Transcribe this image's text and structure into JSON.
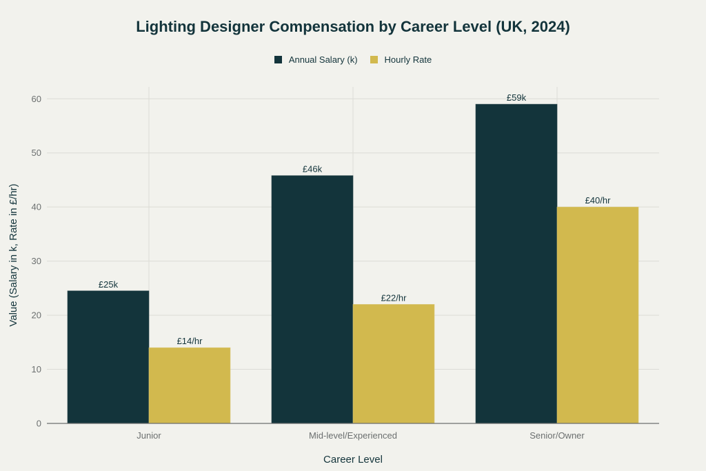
{
  "chart_data": {
    "type": "bar",
    "title": "Lighting Designer Compensation by Career Level (UK, 2024)",
    "xlabel": "Career Level",
    "ylabel": "Value (Salary in k, Rate in £/hr)",
    "categories": [
      "Junior",
      "Mid-level/Experienced",
      "Senior/Owner"
    ],
    "ylim": [
      0,
      62.2
    ],
    "yticks": [
      0,
      10,
      20,
      30,
      40,
      50,
      60
    ],
    "grid": true,
    "legend_position": "top-center",
    "series": [
      {
        "name": "Annual Salary (k)",
        "color": "#13343b",
        "values": [
          24.5,
          45.8,
          59.0
        ],
        "labels": [
          "£25k",
          "£46k",
          "£59k"
        ]
      },
      {
        "name": "Hourly Rate",
        "color": "#d2b94e",
        "values": [
          14,
          22,
          40
        ],
        "labels": [
          "£14/hr",
          "£22/hr",
          "£40/hr"
        ]
      }
    ]
  }
}
